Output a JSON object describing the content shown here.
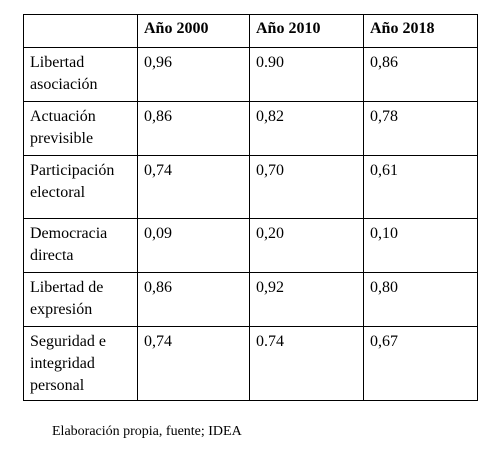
{
  "table": {
    "header": [
      "",
      "Año 2000",
      "Año 2010",
      "Año 2018"
    ],
    "rows": [
      [
        "Libertad asociación",
        "0,96",
        "0.90",
        "0,86"
      ],
      [
        "Actuación previsible",
        "0,86",
        "0,82",
        "0,78"
      ],
      [
        "Participación electoral",
        "0,74",
        "0,70",
        "0,61"
      ],
      [
        "Democracia directa",
        "0,09",
        "0,20",
        "0,10"
      ],
      [
        "Libertad de expresión",
        "0,86",
        "0,92",
        "0,80"
      ],
      [
        "Seguridad e integridad personal",
        "0,74",
        "0.74",
        "0,67"
      ]
    ]
  },
  "caption": "Elaboración propia, fuente; IDEA"
}
